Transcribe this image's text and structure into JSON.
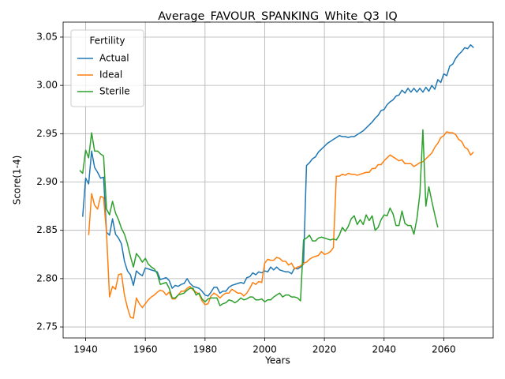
{
  "chart_data": {
    "type": "line",
    "title": "Average_FAVOUR_SPANKING_White_Q3_IQ",
    "xlabel": "Years",
    "ylabel": "Score(1-4)",
    "legend_title": "Fertility",
    "legend": "upper left",
    "grid": true,
    "xlim": [
      1932.45,
      2076.55
    ],
    "xticks": [
      1940,
      1960,
      1980,
      2000,
      2020,
      2040,
      2060
    ],
    "ylim": [
      2.7386,
      3.0655
    ],
    "yticks": [
      2.75,
      {
        "value": 2.8,
        "label": "2.80"
      },
      2.85,
      {
        "value": 2.9,
        "label": "2.90"
      },
      2.95,
      {
        "value": 3.0,
        "label": "3.00"
      },
      3.05
    ],
    "x": [
      1938,
      1939,
      1940,
      1941,
      1942,
      1943,
      1944,
      1945,
      1946,
      1947,
      1948,
      1949,
      1950,
      1951,
      1952,
      1953,
      1954,
      1955,
      1956,
      1957,
      1958,
      1959,
      1960,
      1961,
      1962,
      1963,
      1964,
      1965,
      1966,
      1967,
      1968,
      1969,
      1970,
      1971,
      1972,
      1973,
      1974,
      1975,
      1976,
      1977,
      1978,
      1979,
      1980,
      1981,
      1982,
      1983,
      1984,
      1985,
      1986,
      1987,
      1988,
      1989,
      1990,
      1991,
      1992,
      1993,
      1994,
      1995,
      1996,
      1997,
      1998,
      1999,
      2000,
      2001,
      2002,
      2003,
      2004,
      2005,
      2006,
      2007,
      2008,
      2009,
      2010,
      2011,
      2012,
      2013,
      2014,
      2015,
      2016,
      2017,
      2018,
      2019,
      2020,
      2021,
      2022,
      2023,
      2024,
      2025,
      2026,
      2027,
      2028,
      2029,
      2030,
      2031,
      2032,
      2033,
      2034,
      2035,
      2036,
      2037,
      2038,
      2039,
      2040,
      2041,
      2042,
      2043,
      2044,
      2045,
      2046,
      2047,
      2048,
      2049,
      2050,
      2051,
      2052,
      2053,
      2054,
      2055,
      2056,
      2057,
      2058,
      2059,
      2060,
      2061,
      2062,
      2063,
      2064,
      2065,
      2066,
      2067,
      2068,
      2069,
      2070
    ],
    "series": [
      {
        "name": "Actual",
        "color": "#1f77b4",
        "values": [
          null,
          2.864,
          2.904,
          2.898,
          2.932,
          2.915,
          2.91,
          2.904,
          2.905,
          2.848,
          2.845,
          2.862,
          2.846,
          2.842,
          2.836,
          2.818,
          2.808,
          2.804,
          2.793,
          2.808,
          2.805,
          2.803,
          2.811,
          2.81,
          2.809,
          2.808,
          2.807,
          2.799,
          2.8,
          2.801,
          2.798,
          2.79,
          2.793,
          2.792,
          2.794,
          2.795,
          2.8,
          2.795,
          2.792,
          2.791,
          2.79,
          2.787,
          2.783,
          2.782,
          2.786,
          2.791,
          2.791,
          2.785,
          2.787,
          2.787,
          2.791,
          2.793,
          2.794,
          2.795,
          2.796,
          2.795,
          2.801,
          2.802,
          2.806,
          2.804,
          2.807,
          2.806,
          2.808,
          2.807,
          2.812,
          2.809,
          2.812,
          2.809,
          2.808,
          2.807,
          2.807,
          2.805,
          2.811,
          2.81,
          2.812,
          2.815,
          2.917,
          2.92,
          2.924,
          2.926,
          2.931,
          2.934,
          2.937,
          2.94,
          2.942,
          2.944,
          2.946,
          2.948,
          2.947,
          2.947,
          2.946,
          2.947,
          2.947,
          2.949,
          2.951,
          2.953,
          2.956,
          2.959,
          2.962,
          2.966,
          2.969,
          2.974,
          2.975,
          2.98,
          2.983,
          2.985,
          2.989,
          2.99,
          2.995,
          2.992,
          2.997,
          2.993,
          2.997,
          2.993,
          2.997,
          2.993,
          2.998,
          2.994,
          3.0,
          2.996,
          3.006,
          3.003,
          3.012,
          3.01,
          3.02,
          3.022,
          3.028,
          3.032,
          3.035,
          3.039,
          3.038,
          3.042,
          3.039
        ]
      },
      {
        "name": "Ideal",
        "color": "#ff7f0e",
        "values": [
          null,
          null,
          null,
          2.845,
          2.888,
          2.876,
          2.872,
          2.885,
          2.884,
          2.847,
          2.781,
          2.792,
          2.789,
          2.804,
          2.805,
          2.783,
          2.77,
          2.76,
          2.759,
          2.78,
          2.774,
          2.77,
          2.774,
          2.778,
          2.781,
          2.783,
          2.786,
          2.788,
          2.787,
          2.783,
          2.786,
          2.779,
          2.779,
          2.783,
          2.787,
          2.787,
          2.79,
          2.792,
          2.788,
          2.786,
          2.784,
          2.777,
          2.773,
          2.774,
          2.782,
          2.785,
          2.783,
          2.78,
          2.783,
          2.785,
          2.785,
          2.789,
          2.787,
          2.785,
          2.785,
          2.782,
          2.785,
          2.79,
          2.796,
          2.794,
          2.797,
          2.796,
          2.816,
          2.82,
          2.819,
          2.819,
          2.822,
          2.821,
          2.818,
          2.818,
          2.814,
          2.816,
          2.81,
          2.812,
          2.813,
          2.816,
          2.817,
          2.82,
          2.822,
          2.823,
          2.824,
          2.828,
          2.825,
          2.826,
          2.828,
          2.832,
          2.906,
          2.906,
          2.908,
          2.907,
          2.909,
          2.908,
          2.908,
          2.907,
          2.908,
          2.909,
          2.91,
          2.91,
          2.914,
          2.914,
          2.918,
          2.918,
          2.922,
          2.925,
          2.928,
          2.926,
          2.924,
          2.922,
          2.923,
          2.919,
          2.919,
          2.919,
          2.916,
          2.918,
          2.92,
          2.921,
          2.924,
          2.927,
          2.93,
          2.936,
          2.94,
          2.946,
          2.948,
          2.952,
          2.951,
          2.951,
          2.949,
          2.944,
          2.942,
          2.936,
          2.934,
          2.928,
          2.931
        ]
      },
      {
        "name": "Sterile",
        "color": "#2ca02c",
        "values": [
          2.912,
          2.909,
          2.933,
          2.925,
          2.951,
          2.932,
          2.932,
          2.929,
          2.927,
          2.872,
          2.866,
          2.88,
          2.868,
          2.861,
          2.852,
          2.846,
          2.836,
          2.823,
          2.812,
          2.826,
          2.822,
          2.817,
          2.821,
          2.815,
          2.812,
          2.81,
          2.805,
          2.794,
          2.795,
          2.796,
          2.79,
          2.78,
          2.78,
          2.783,
          2.784,
          2.785,
          2.788,
          2.79,
          2.79,
          2.783,
          2.785,
          2.779,
          2.776,
          2.779,
          2.78,
          2.78,
          2.78,
          2.772,
          2.774,
          2.775,
          2.778,
          2.777,
          2.775,
          2.777,
          2.78,
          2.778,
          2.779,
          2.781,
          2.781,
          2.778,
          2.778,
          2.779,
          2.776,
          2.778,
          2.778,
          2.781,
          2.783,
          2.785,
          2.781,
          2.783,
          2.783,
          2.781,
          2.781,
          2.78,
          2.777,
          2.84,
          2.842,
          2.845,
          2.839,
          2.839,
          2.842,
          2.843,
          2.842,
          2.841,
          2.84,
          2.841,
          2.84,
          2.845,
          2.853,
          2.849,
          2.854,
          2.862,
          2.865,
          2.856,
          2.861,
          2.856,
          2.866,
          2.86,
          2.865,
          2.85,
          2.853,
          2.861,
          2.866,
          2.865,
          2.873,
          2.867,
          2.855,
          2.855,
          2.87,
          2.857,
          2.855,
          2.855,
          2.846,
          2.862,
          2.888,
          2.954,
          2.875,
          2.895,
          2.88,
          2.866,
          2.853,
          null,
          null,
          null,
          null,
          null,
          null,
          null,
          null,
          null,
          null,
          null,
          null
        ]
      }
    ]
  }
}
